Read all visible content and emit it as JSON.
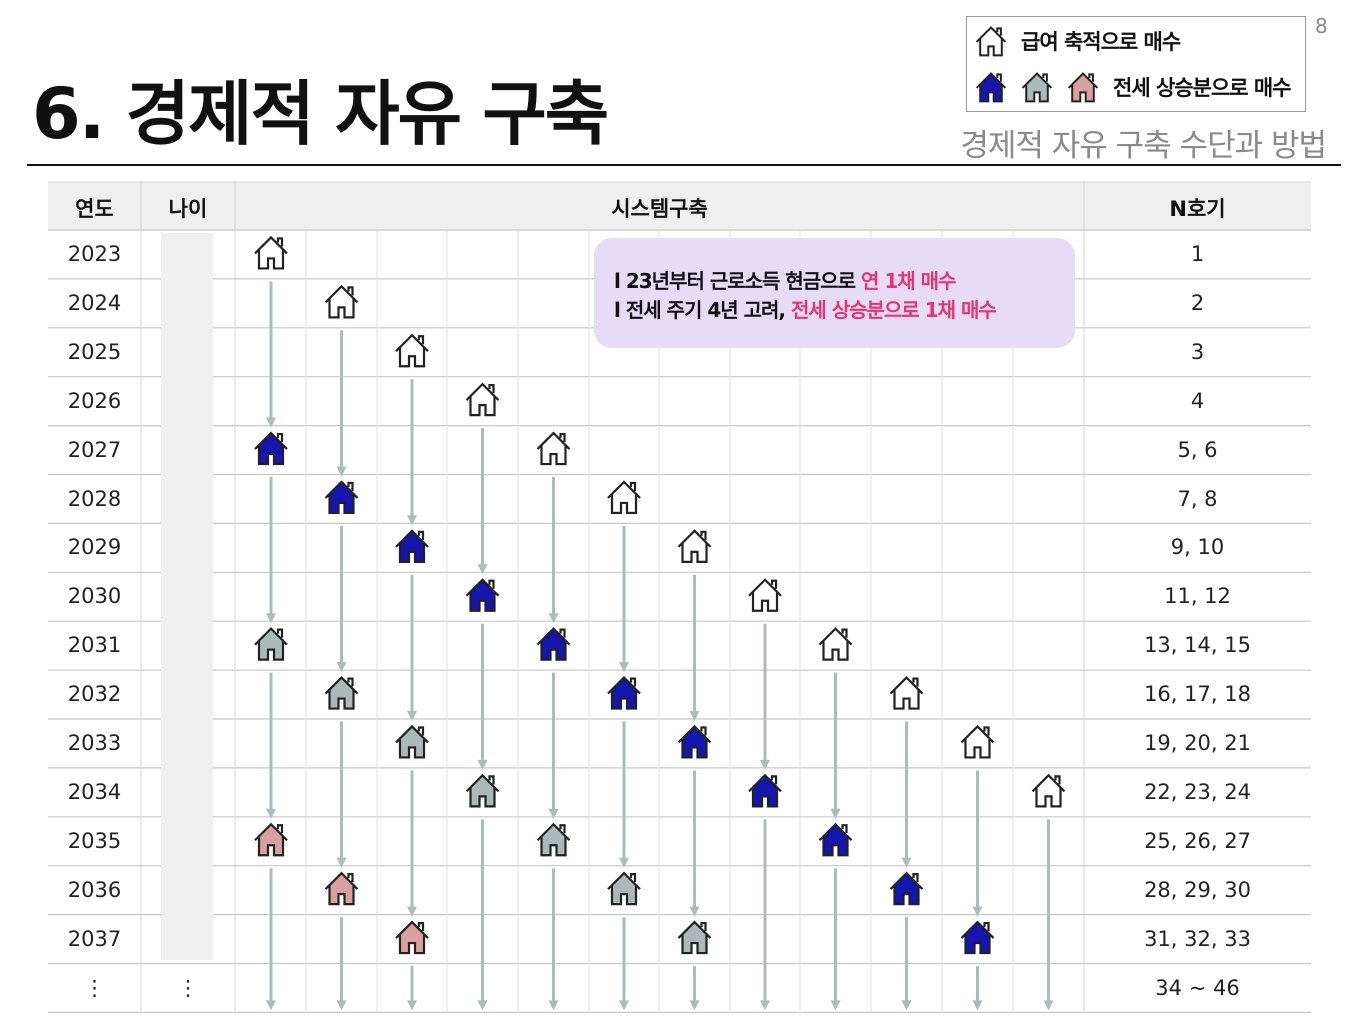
{
  "page_number": "8",
  "title": "6. 경제적 자유 구축",
  "subtitle": "경제적 자유 구축 수단과 방법",
  "legend": {
    "salary_label": "급여 축적으로 매수",
    "jeonse_label": "전세 상승분으로 매수"
  },
  "table": {
    "headers": {
      "year": "연도",
      "age": "나이",
      "system": "시스템구축",
      "n": "N호기"
    },
    "rows": [
      {
        "year": "2023",
        "n": "1"
      },
      {
        "year": "2024",
        "n": "2"
      },
      {
        "year": "2025",
        "n": "3"
      },
      {
        "year": "2026",
        "n": "4"
      },
      {
        "year": "2027",
        "n": "5, 6"
      },
      {
        "year": "2028",
        "n": "7, 8"
      },
      {
        "year": "2029",
        "n": "9, 10"
      },
      {
        "year": "2030",
        "n": "11, 12"
      },
      {
        "year": "2031",
        "n": "13, 14, 15"
      },
      {
        "year": "2032",
        "n": "16, 17, 18"
      },
      {
        "year": "2033",
        "n": "19, 20, 21"
      },
      {
        "year": "2034",
        "n": "22, 23, 24"
      },
      {
        "year": "2035",
        "n": "25, 26, 27"
      },
      {
        "year": "2036",
        "n": "28, 29, 30"
      },
      {
        "year": "2037",
        "n": "31, 32, 33"
      },
      {
        "year": "⋮",
        "age": "⋮",
        "n": "34 ~ 46"
      }
    ]
  },
  "notice": {
    "line1_prefix": "l  23년부터 근로소득 현금으로 ",
    "line1_highlight": "연 1채 매수",
    "line2_prefix": "l  전세 주기 4년 고려, ",
    "line2_highlight": "전세 상승분으로 1채 매수"
  },
  "colors": {
    "house_outline": "#ffffff",
    "house_blue": "#1515b0",
    "house_gray": "#aab9b9",
    "house_pink": "#d9a0a0",
    "arrow": "#aabdbd",
    "highlight": "#e8336d",
    "notice_bg": "#e6dcf7"
  }
}
